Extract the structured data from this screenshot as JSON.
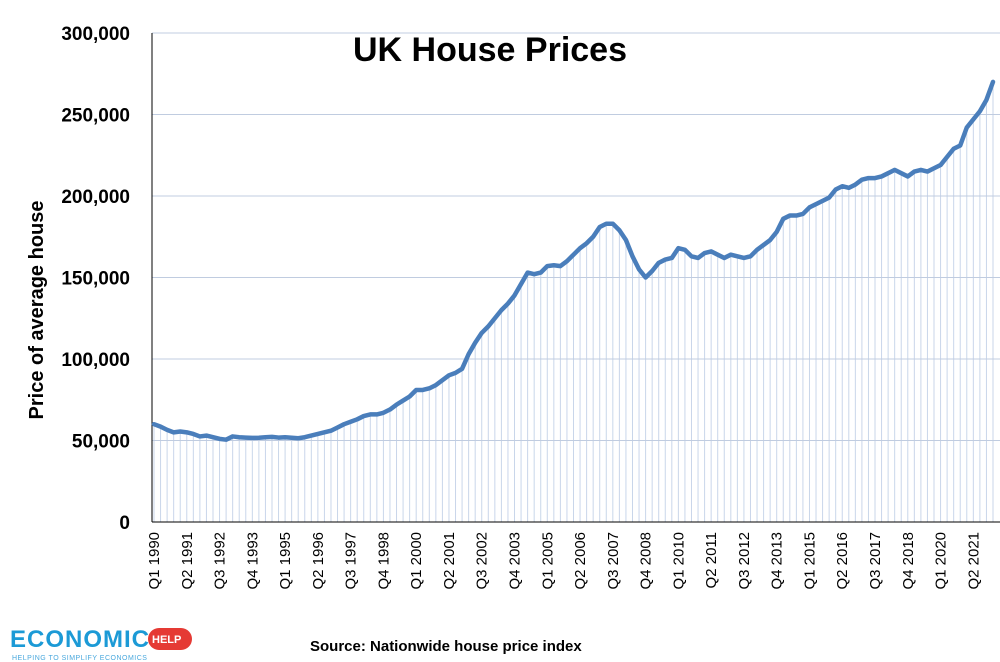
{
  "chart_data": {
    "type": "line",
    "title": "UK House Prices",
    "ylabel": "Price of average house",
    "xlabel": "",
    "source": "Source: Nationwide house price index",
    "ylim": [
      0,
      300000
    ],
    "yticks": [
      "0",
      "50,000",
      "100,000",
      "150,000",
      "200,000",
      "250,000",
      "300,000"
    ],
    "ytick_values": [
      0,
      50000,
      100000,
      150000,
      200000,
      250000,
      300000
    ],
    "x_tick_labels": [
      "Q1 1990",
      "Q2 1991",
      "Q3 1992",
      "Q4 1993",
      "Q1 1995",
      "Q2 1996",
      "Q3 1997",
      "Q4 1998",
      "Q1 2000",
      "Q2 2001",
      "Q3 2002",
      "Q4 2003",
      "Q1 2005",
      "Q2 2006",
      "Q3 2007",
      "Q4 2008",
      "Q1 2010",
      "Q2 2011",
      "Q3 2012",
      "Q4 2013",
      "Q1 2015",
      "Q2 2016",
      "Q3 2017",
      "Q4 2018",
      "Q1 2020",
      "Q2 2021"
    ],
    "x_tick_every": 5,
    "grid": "horizontal gridlines plus vertical area hatching under the line",
    "legend": "none",
    "series": [
      {
        "values": [
          60000,
          58500,
          56500,
          55000,
          55500,
          55000,
          54000,
          52500,
          53000,
          52000,
          51000,
          50500,
          52500,
          52000,
          51800,
          51600,
          51700,
          52000,
          52200,
          51800,
          52000,
          51700,
          51400,
          52000,
          53000,
          54000,
          55000,
          56000,
          58000,
          60000,
          61500,
          63000,
          65000,
          66000,
          66000,
          67000,
          69000,
          72000,
          74500,
          77000,
          81000,
          81000,
          82000,
          84000,
          87000,
          90000,
          91500,
          94000,
          103000,
          110000,
          116000,
          120000,
          125000,
          130000,
          134000,
          139000,
          146000,
          153000,
          152000,
          153000,
          157000,
          157500,
          157000,
          160000,
          164000,
          168000,
          171000,
          175000,
          181000,
          183000,
          183000,
          179000,
          173000,
          163000,
          155000,
          150000,
          154000,
          159000,
          161000,
          162000,
          168000,
          167000,
          163000,
          162000,
          165000,
          166000,
          164000,
          162000,
          164000,
          163000,
          162000,
          163000,
          167000,
          170000,
          173000,
          178000,
          186000,
          188000,
          188000,
          189000,
          193000,
          195000,
          197000,
          199000,
          204000,
          206000,
          205000,
          207000,
          210000,
          211000,
          211000,
          212000,
          214000,
          216000,
          214000,
          212000,
          215000,
          216000,
          215000,
          217000,
          219000,
          224000,
          229000,
          231000,
          242000,
          247000,
          252000,
          259000,
          270000
        ]
      }
    ],
    "colors": {
      "line": "#4a7ebb",
      "hatch": "#c9d6ea",
      "gridline": "#c0cce0",
      "axis": "#000000"
    }
  },
  "logo": {
    "text": "ECONOMICS",
    "badge": "HELP",
    "tagline": "HELPING TO SIMPLIFY ECONOMICS"
  }
}
